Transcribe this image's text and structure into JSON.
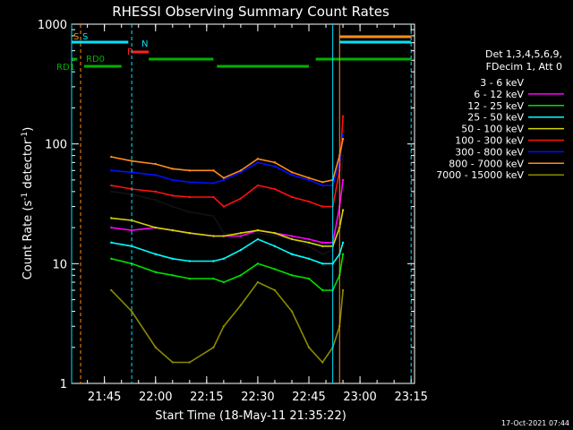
{
  "chart_data": {
    "type": "line",
    "title": "RHESSI Observing Summary Count Rates",
    "xlabel": "Start Time (18-May-11 21:35:22)",
    "ylabel_main": "Count Rate (s",
    "ylabel_sup1": "-1",
    "ylabel_mid": " detector",
    "ylabel_sup2": "-1",
    "ylabel_end": ")",
    "yscale": "log",
    "ylim": [
      1,
      1000
    ],
    "xlim": [
      "21:35:22",
      "23:16:00"
    ],
    "x_ticks": [
      "21:45",
      "22:00",
      "22:15",
      "22:30",
      "22:45",
      "23:00",
      "23:15"
    ],
    "y_ticks": [
      "1",
      "10",
      "100",
      "1000"
    ],
    "legend_title": [
      "Det 1,3,4,5,6,9,",
      "FDecim 1, Att 0"
    ],
    "timestamp": "17-Oct-2021 07:44",
    "flags": [
      {
        "label": "S",
        "color": "#ff8c1a"
      },
      {
        "label": "S",
        "color": "#00e5ff"
      },
      {
        "label": "N",
        "color": "#00e5ff"
      },
      {
        "label": "F",
        "color": "#ff2020"
      },
      {
        "label": "RD0",
        "color": "#00b000"
      },
      {
        "label": "RD1",
        "color": "#00b000"
      }
    ],
    "series": [
      {
        "name": "3 - 6 keV",
        "color": "#000000",
        "values": [
          [
            "21:47",
            40
          ],
          [
            "21:53",
            38
          ],
          [
            "22:00",
            34
          ],
          [
            "22:05",
            30
          ],
          [
            "22:10",
            27
          ],
          [
            "22:17",
            25
          ],
          [
            "22:20",
            18
          ],
          [
            "22:25",
            17
          ],
          [
            "22:30",
            18
          ],
          [
            "22:35",
            17
          ],
          [
            "22:40",
            16
          ],
          [
            "22:45",
            14
          ],
          [
            "22:49",
            12
          ],
          [
            "22:52",
            13
          ],
          [
            "22:54",
            30
          ],
          [
            "22:55",
            80
          ]
        ]
      },
      {
        "name": "6 - 12 keV",
        "color": "#ff00ff",
        "values": [
          [
            "21:47",
            20
          ],
          [
            "21:53",
            19
          ],
          [
            "22:00",
            20
          ],
          [
            "22:05",
            19
          ],
          [
            "22:10",
            18
          ],
          [
            "22:17",
            17
          ],
          [
            "22:20",
            17
          ],
          [
            "22:25",
            17
          ],
          [
            "22:30",
            19
          ],
          [
            "22:35",
            18
          ],
          [
            "22:40",
            17
          ],
          [
            "22:45",
            16
          ],
          [
            "22:49",
            15
          ],
          [
            "22:52",
            15
          ],
          [
            "22:54",
            30
          ],
          [
            "22:55",
            50
          ]
        ]
      },
      {
        "name": "12 - 25 keV",
        "color": "#00e000",
        "values": [
          [
            "21:47",
            11
          ],
          [
            "21:53",
            10
          ],
          [
            "22:00",
            8.5
          ],
          [
            "22:05",
            8
          ],
          [
            "22:10",
            7.5
          ],
          [
            "22:17",
            7.5
          ],
          [
            "22:20",
            7
          ],
          [
            "22:25",
            8
          ],
          [
            "22:30",
            10
          ],
          [
            "22:35",
            9
          ],
          [
            "22:40",
            8
          ],
          [
            "22:45",
            7.5
          ],
          [
            "22:49",
            6
          ],
          [
            "22:52",
            6
          ],
          [
            "22:54",
            8
          ],
          [
            "22:55",
            12
          ]
        ]
      },
      {
        "name": "25 - 50 keV",
        "color": "#00ffff",
        "values": [
          [
            "21:47",
            15
          ],
          [
            "21:53",
            14
          ],
          [
            "22:00",
            12
          ],
          [
            "22:05",
            11
          ],
          [
            "22:10",
            10.5
          ],
          [
            "22:17",
            10.5
          ],
          [
            "22:20",
            11
          ],
          [
            "22:25",
            13
          ],
          [
            "22:30",
            16
          ],
          [
            "22:35",
            14
          ],
          [
            "22:40",
            12
          ],
          [
            "22:45",
            11
          ],
          [
            "22:49",
            10
          ],
          [
            "22:52",
            10
          ],
          [
            "22:54",
            12
          ],
          [
            "22:55",
            15
          ]
        ]
      },
      {
        "name": "50 - 100 keV",
        "color": "#d4d400",
        "values": [
          [
            "21:47",
            24
          ],
          [
            "21:53",
            23
          ],
          [
            "22:00",
            20
          ],
          [
            "22:05",
            19
          ],
          [
            "22:10",
            18
          ],
          [
            "22:17",
            17
          ],
          [
            "22:20",
            17
          ],
          [
            "22:25",
            18
          ],
          [
            "22:30",
            19
          ],
          [
            "22:35",
            18
          ],
          [
            "22:40",
            16
          ],
          [
            "22:45",
            15
          ],
          [
            "22:49",
            14
          ],
          [
            "22:52",
            14
          ],
          [
            "22:54",
            20
          ],
          [
            "22:55",
            28
          ]
        ]
      },
      {
        "name": "100 - 300 keV",
        "color": "#ff1010",
        "values": [
          [
            "21:47",
            45
          ],
          [
            "21:53",
            42
          ],
          [
            "22:00",
            40
          ],
          [
            "22:05",
            37
          ],
          [
            "22:10",
            36
          ],
          [
            "22:17",
            36
          ],
          [
            "22:20",
            30
          ],
          [
            "22:25",
            35
          ],
          [
            "22:30",
            45
          ],
          [
            "22:35",
            42
          ],
          [
            "22:40",
            36
          ],
          [
            "22:45",
            33
          ],
          [
            "22:49",
            30
          ],
          [
            "22:52",
            30
          ],
          [
            "22:54",
            60
          ],
          [
            "22:55",
            170
          ]
        ]
      },
      {
        "name": "300 - 800 keV",
        "color": "#0010ff",
        "values": [
          [
            "21:47",
            60
          ],
          [
            "21:53",
            58
          ],
          [
            "22:00",
            55
          ],
          [
            "22:05",
            50
          ],
          [
            "22:10",
            48
          ],
          [
            "22:17",
            47
          ],
          [
            "22:20",
            50
          ],
          [
            "22:25",
            58
          ],
          [
            "22:30",
            70
          ],
          [
            "22:35",
            65
          ],
          [
            "22:40",
            55
          ],
          [
            "22:45",
            50
          ],
          [
            "22:49",
            45
          ],
          [
            "22:52",
            45
          ],
          [
            "22:54",
            70
          ],
          [
            "22:55",
            120
          ]
        ]
      },
      {
        "name": "800 - 7000 keV",
        "color": "#ff8c1a",
        "values": [
          [
            "21:47",
            78
          ],
          [
            "21:53",
            72
          ],
          [
            "22:00",
            68
          ],
          [
            "22:05",
            62
          ],
          [
            "22:10",
            60
          ],
          [
            "22:17",
            60
          ],
          [
            "22:20",
            52
          ],
          [
            "22:25",
            60
          ],
          [
            "22:30",
            75
          ],
          [
            "22:35",
            70
          ],
          [
            "22:40",
            58
          ],
          [
            "22:45",
            52
          ],
          [
            "22:49",
            48
          ],
          [
            "22:52",
            50
          ],
          [
            "22:54",
            80
          ],
          [
            "22:55",
            110
          ]
        ]
      },
      {
        "name": "7000 - 15000 keV",
        "color": "#8b8b00",
        "values": [
          [
            "21:47",
            6
          ],
          [
            "21:53",
            4
          ],
          [
            "22:00",
            2
          ],
          [
            "22:05",
            1.5
          ],
          [
            "22:10",
            1.5
          ],
          [
            "22:17",
            2
          ],
          [
            "22:20",
            3
          ],
          [
            "22:25",
            4.5
          ],
          [
            "22:30",
            7
          ],
          [
            "22:35",
            6
          ],
          [
            "22:40",
            4
          ],
          [
            "22:45",
            2
          ],
          [
            "22:49",
            1.5
          ],
          [
            "22:52",
            2
          ],
          [
            "22:54",
            3
          ],
          [
            "22:55",
            6
          ]
        ]
      }
    ]
  }
}
